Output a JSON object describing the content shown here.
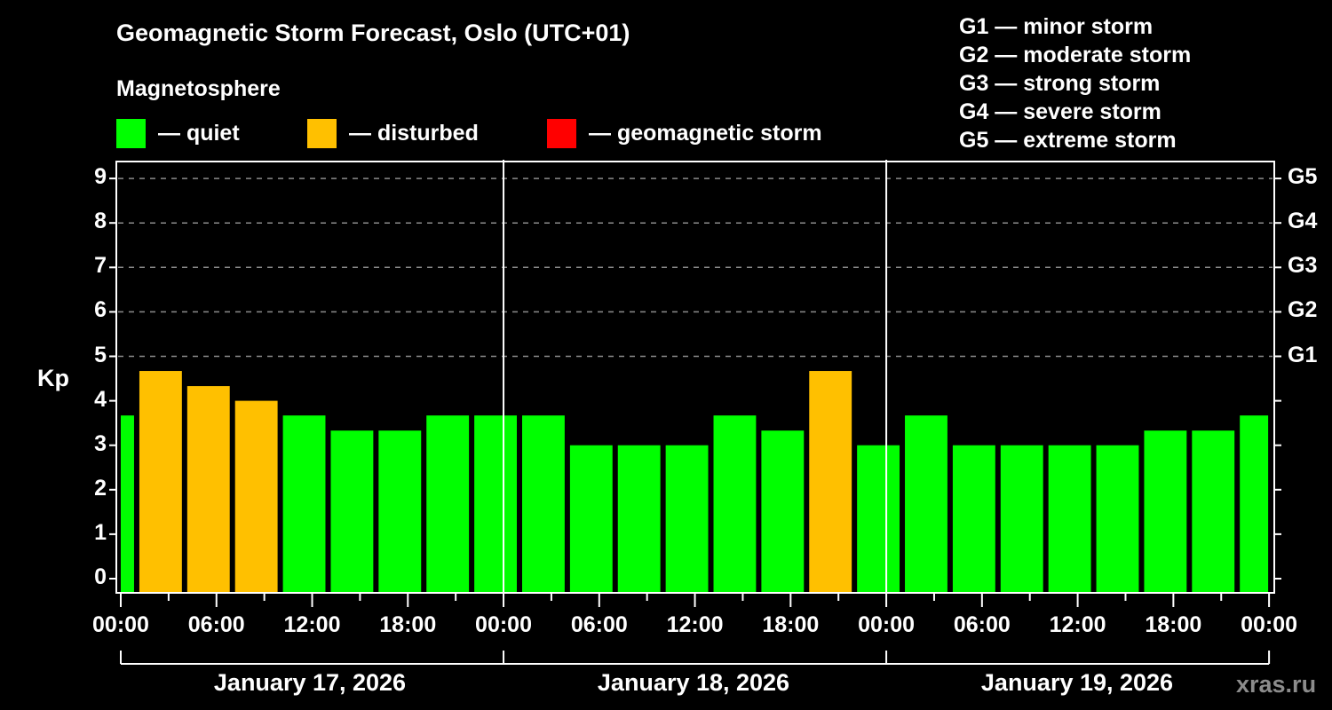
{
  "title": "Geomagnetic Storm Forecast, Oslo (UTC+01)",
  "legend": {
    "heading": "Magnetosphere",
    "items": [
      {
        "label": "— quiet",
        "color": "#00ff00"
      },
      {
        "label": "— disturbed",
        "color": "#ffc000"
      },
      {
        "label": "— geomagnetic storm",
        "color": "#ff0000"
      }
    ]
  },
  "g_scale": [
    "G1 — minor storm",
    "G2 — moderate storm",
    "G3 — strong storm",
    "G4 — severe storm",
    "G5 — extreme storm"
  ],
  "axes": {
    "ylabel": "Kp",
    "yticks": [
      "0",
      "1",
      "2",
      "3",
      "4",
      "5",
      "6",
      "7",
      "8",
      "9"
    ],
    "right_ticks": [
      {
        "kp": 5,
        "label": "G1"
      },
      {
        "kp": 6,
        "label": "G2"
      },
      {
        "kp": 7,
        "label": "G3"
      },
      {
        "kp": 8,
        "label": "G4"
      },
      {
        "kp": 9,
        "label": "G5"
      }
    ],
    "xticks": [
      "00:00",
      "06:00",
      "12:00",
      "18:00",
      "00:00",
      "06:00",
      "12:00",
      "18:00",
      "00:00",
      "06:00",
      "12:00",
      "18:00",
      "00:00"
    ],
    "dates": [
      "January 17, 2026",
      "January 18, 2026",
      "January 19, 2026"
    ]
  },
  "watermark": "xras.ru",
  "chart_data": {
    "type": "bar",
    "title": "Geomagnetic Storm Forecast, Oslo (UTC+01)",
    "xlabel": "",
    "ylabel": "Kp",
    "ylim": [
      0,
      9
    ],
    "grid": "dashed horizontal at Kp 5-9",
    "x_range_hours": [
      0,
      72
    ],
    "categories": [
      "Jan 17 00:00",
      "Jan 17 01:00",
      "Jan 17 04:00",
      "Jan 17 07:00",
      "Jan 17 10:00",
      "Jan 17 13:00",
      "Jan 17 16:00",
      "Jan 17 19:00",
      "Jan 17 22:00",
      "Jan 18 01:00",
      "Jan 18 04:00",
      "Jan 18 07:00",
      "Jan 18 10:00",
      "Jan 18 13:00",
      "Jan 18 16:00",
      "Jan 18 19:00",
      "Jan 18 22:00",
      "Jan 19 01:00",
      "Jan 19 04:00",
      "Jan 19 07:00",
      "Jan 19 10:00",
      "Jan 19 13:00",
      "Jan 19 16:00",
      "Jan 19 19:00",
      "Jan 19 22:00"
    ],
    "bars": [
      {
        "start_h": 0,
        "end_h": 1,
        "kp": 3.67,
        "status": "quiet"
      },
      {
        "start_h": 1,
        "end_h": 4,
        "kp": 4.67,
        "status": "disturbed"
      },
      {
        "start_h": 4,
        "end_h": 7,
        "kp": 4.33,
        "status": "disturbed"
      },
      {
        "start_h": 7,
        "end_h": 10,
        "kp": 4.0,
        "status": "disturbed"
      },
      {
        "start_h": 10,
        "end_h": 13,
        "kp": 3.67,
        "status": "quiet"
      },
      {
        "start_h": 13,
        "end_h": 16,
        "kp": 3.33,
        "status": "quiet"
      },
      {
        "start_h": 16,
        "end_h": 19,
        "kp": 3.33,
        "status": "quiet"
      },
      {
        "start_h": 19,
        "end_h": 22,
        "kp": 3.67,
        "status": "quiet"
      },
      {
        "start_h": 22,
        "end_h": 25,
        "kp": 3.67,
        "status": "quiet"
      },
      {
        "start_h": 25,
        "end_h": 28,
        "kp": 3.67,
        "status": "quiet"
      },
      {
        "start_h": 28,
        "end_h": 31,
        "kp": 3.0,
        "status": "quiet"
      },
      {
        "start_h": 31,
        "end_h": 34,
        "kp": 3.0,
        "status": "quiet"
      },
      {
        "start_h": 34,
        "end_h": 37,
        "kp": 3.0,
        "status": "quiet"
      },
      {
        "start_h": 37,
        "end_h": 40,
        "kp": 3.67,
        "status": "quiet"
      },
      {
        "start_h": 40,
        "end_h": 43,
        "kp": 3.33,
        "status": "quiet"
      },
      {
        "start_h": 43,
        "end_h": 46,
        "kp": 4.67,
        "status": "disturbed"
      },
      {
        "start_h": 46,
        "end_h": 49,
        "kp": 3.0,
        "status": "quiet"
      },
      {
        "start_h": 49,
        "end_h": 52,
        "kp": 3.67,
        "status": "quiet"
      },
      {
        "start_h": 52,
        "end_h": 55,
        "kp": 3.0,
        "status": "quiet"
      },
      {
        "start_h": 55,
        "end_h": 58,
        "kp": 3.0,
        "status": "quiet"
      },
      {
        "start_h": 58,
        "end_h": 61,
        "kp": 3.0,
        "status": "quiet"
      },
      {
        "start_h": 61,
        "end_h": 64,
        "kp": 3.0,
        "status": "quiet"
      },
      {
        "start_h": 64,
        "end_h": 67,
        "kp": 3.33,
        "status": "quiet"
      },
      {
        "start_h": 67,
        "end_h": 70,
        "kp": 3.33,
        "status": "quiet"
      },
      {
        "start_h": 70,
        "end_h": 72,
        "kp": 3.67,
        "status": "quiet"
      }
    ],
    "values": [
      3.67,
      4.67,
      4.33,
      4.0,
      3.67,
      3.33,
      3.33,
      3.67,
      3.67,
      3.67,
      3.0,
      3.0,
      3.0,
      3.67,
      3.33,
      4.67,
      3.0,
      3.67,
      3.0,
      3.0,
      3.0,
      3.0,
      3.33,
      3.33,
      3.67
    ],
    "legend": [
      "quiet",
      "disturbed",
      "geomagnetic storm"
    ],
    "colors": {
      "quiet": "#00ff00",
      "disturbed": "#ffc000",
      "storm": "#ff0000"
    }
  }
}
